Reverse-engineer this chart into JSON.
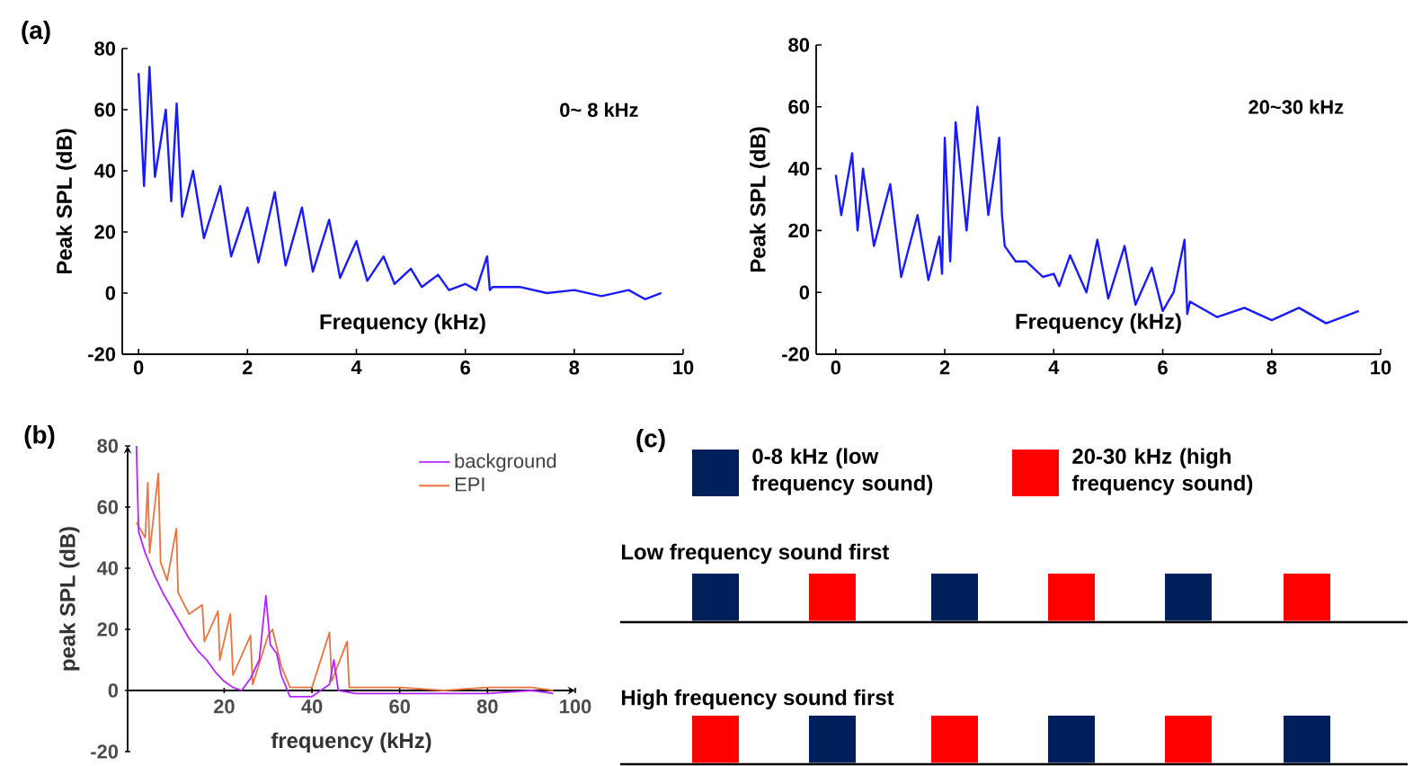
{
  "chart_data": [
    {
      "type": "line",
      "title": "(a)",
      "xlabel": "Frequency (kHz)",
      "ylabel": "Peak SPL (dB)",
      "annotations": [
        "0~ 8 kHz"
      ],
      "xlim": [
        -0.3,
        10
      ],
      "ylim": [
        -20,
        80
      ],
      "xticks": [
        0,
        2,
        4,
        6,
        8,
        10
      ],
      "yticks": [
        -20,
        0,
        20,
        40,
        60,
        80
      ],
      "series": [
        {
          "color": "#1a1aff",
          "x": [
            0,
            0.1,
            0.2,
            0.3,
            0.5,
            0.6,
            0.7,
            0.8,
            1.0,
            1.2,
            1.5,
            1.7,
            2.0,
            2.2,
            2.5,
            2.7,
            3.0,
            3.2,
            3.5,
            3.7,
            4.0,
            4.2,
            4.5,
            4.7,
            5.0,
            5.2,
            5.5,
            5.7,
            6.0,
            6.2,
            6.4,
            6.45,
            6.5,
            7.0,
            7.5,
            8.0,
            8.5,
            9.0,
            9.3,
            9.6
          ],
          "values": [
            72,
            35,
            74,
            38,
            60,
            30,
            62,
            25,
            40,
            18,
            35,
            12,
            28,
            10,
            33,
            9,
            28,
            7,
            24,
            5,
            17,
            4,
            12,
            3,
            8,
            2,
            6,
            1,
            3,
            1,
            12,
            1,
            2,
            2,
            0,
            1,
            -1,
            1,
            -2,
            0
          ]
        }
      ]
    },
    {
      "type": "line",
      "xlabel": "Frequency (kHz)",
      "ylabel": "Peak SPL (dB)",
      "annotations": [
        "20~30 kHz"
      ],
      "xlim": [
        -0.36,
        10
      ],
      "ylim": [
        -20,
        80
      ],
      "xticks": [
        0,
        2,
        4,
        6,
        8,
        10
      ],
      "yticks": [
        -20,
        0,
        20,
        40,
        60,
        80
      ],
      "series": [
        {
          "color": "#1a1aff",
          "x": [
            0,
            0.1,
            0.3,
            0.4,
            0.5,
            0.7,
            1.0,
            1.2,
            1.5,
            1.7,
            1.9,
            1.95,
            2.0,
            2.1,
            2.2,
            2.4,
            2.6,
            2.8,
            3.0,
            3.05,
            3.1,
            3.3,
            3.5,
            3.8,
            4.0,
            4.1,
            4.3,
            4.6,
            4.8,
            5.0,
            5.3,
            5.5,
            5.8,
            6.0,
            6.2,
            6.4,
            6.45,
            6.5,
            7.0,
            7.5,
            8.0,
            8.5,
            9.0,
            9.6
          ],
          "values": [
            38,
            25,
            45,
            20,
            40,
            15,
            35,
            5,
            25,
            4,
            18,
            6,
            50,
            10,
            55,
            20,
            60,
            25,
            50,
            25,
            15,
            10,
            10,
            5,
            6,
            2,
            12,
            0,
            17,
            -2,
            15,
            -4,
            8,
            -6,
            0,
            17,
            -7,
            -3,
            -8,
            -5,
            -9,
            -5,
            -10,
            -6
          ]
        }
      ]
    },
    {
      "type": "line",
      "title": "(b)",
      "xlabel": "frequency (kHz)",
      "ylabel": "peak SPL (dB)",
      "xlim": [
        -2,
        100
      ],
      "ylim": [
        -20,
        80
      ],
      "xticks": [
        20,
        40,
        60,
        80,
        100
      ],
      "yticks": [
        -20,
        0,
        20,
        40,
        60,
        80
      ],
      "legend": "top right",
      "series": [
        {
          "name": "EPI",
          "color": "#e8733f",
          "x": [
            0,
            2,
            2.6,
            3,
            5,
            5.5,
            7,
            9.1,
            9.5,
            12,
            15,
            15.5,
            18.6,
            19,
            21.4,
            22,
            26,
            26.5,
            30,
            31,
            33,
            35,
            40,
            44,
            44.5,
            48,
            48.5,
            60,
            70,
            80,
            90,
            95
          ],
          "values": [
            55,
            50,
            68,
            45,
            71,
            42,
            36,
            53,
            32,
            25,
            28,
            16,
            26,
            10,
            25,
            5,
            18,
            2,
            18,
            20,
            8,
            1,
            1,
            19,
            3,
            16,
            1,
            1,
            0,
            1,
            1,
            0
          ]
        },
        {
          "name": "background",
          "color": "#b026ff",
          "x": [
            0,
            0.5,
            2,
            4,
            6,
            8,
            10,
            12,
            14,
            16,
            18,
            20,
            22,
            24,
            26,
            28,
            29.5,
            30.5,
            32,
            33,
            35,
            40,
            44,
            45,
            46,
            50,
            60,
            70,
            80,
            90,
            95
          ],
          "values": [
            80,
            52,
            45,
            38,
            32,
            27,
            22,
            17,
            13,
            10,
            6,
            3,
            1,
            0,
            4,
            10,
            31,
            15,
            12,
            5,
            -2,
            -2,
            2,
            10,
            0,
            -1,
            -1,
            -1,
            -1,
            0,
            -1
          ]
        }
      ]
    },
    {
      "type": "other",
      "title": "(c)",
      "colors": [
        "#00205b",
        "#ff0000"
      ],
      "annotations": [
        "0-8 kHz (low frequency sound)",
        "20-30 kHz (high frequency sound)",
        "Low frequency sound  first",
        "High frequency sound first"
      ]
    }
  ]
}
